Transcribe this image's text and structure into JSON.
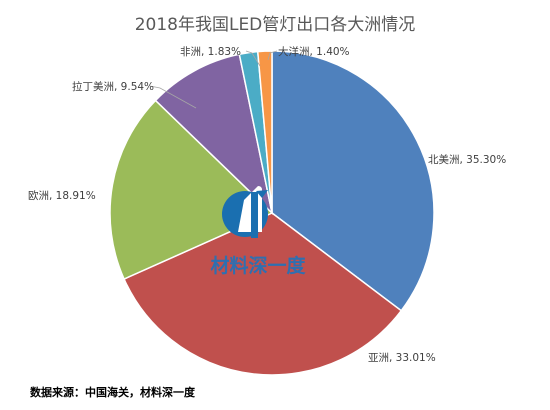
{
  "chart_data": {
    "type": "pie",
    "title": "2018年我国LED管灯出口各大洲情况",
    "categories": [
      "北美洲",
      "亚洲",
      "欧洲",
      "拉丁美洲",
      "非洲",
      "大洋洲"
    ],
    "values": [
      35.3,
      33.01,
      18.91,
      9.54,
      1.83,
      1.4
    ],
    "labels": [
      "北美洲, 35.30%",
      "亚洲, 33.01%",
      "欧洲, 18.91%",
      "拉丁美洲, 9.54%",
      "非洲, 1.83%",
      "大洋洲, 1.40%"
    ],
    "colors": [
      "#4f81bd",
      "#c0504d",
      "#9bbb59",
      "#8064a2",
      "#4bacc6",
      "#f79646"
    ],
    "start_angle": "12 o'clock",
    "direction": "clockwise",
    "legend": "none"
  },
  "source_note": "数据来源：中国海关，材料深一度",
  "watermark": {
    "text": "材料深一度",
    "icon": "material-logo-icon",
    "colors": [
      "#1a6fb0",
      "#ffffff"
    ]
  }
}
